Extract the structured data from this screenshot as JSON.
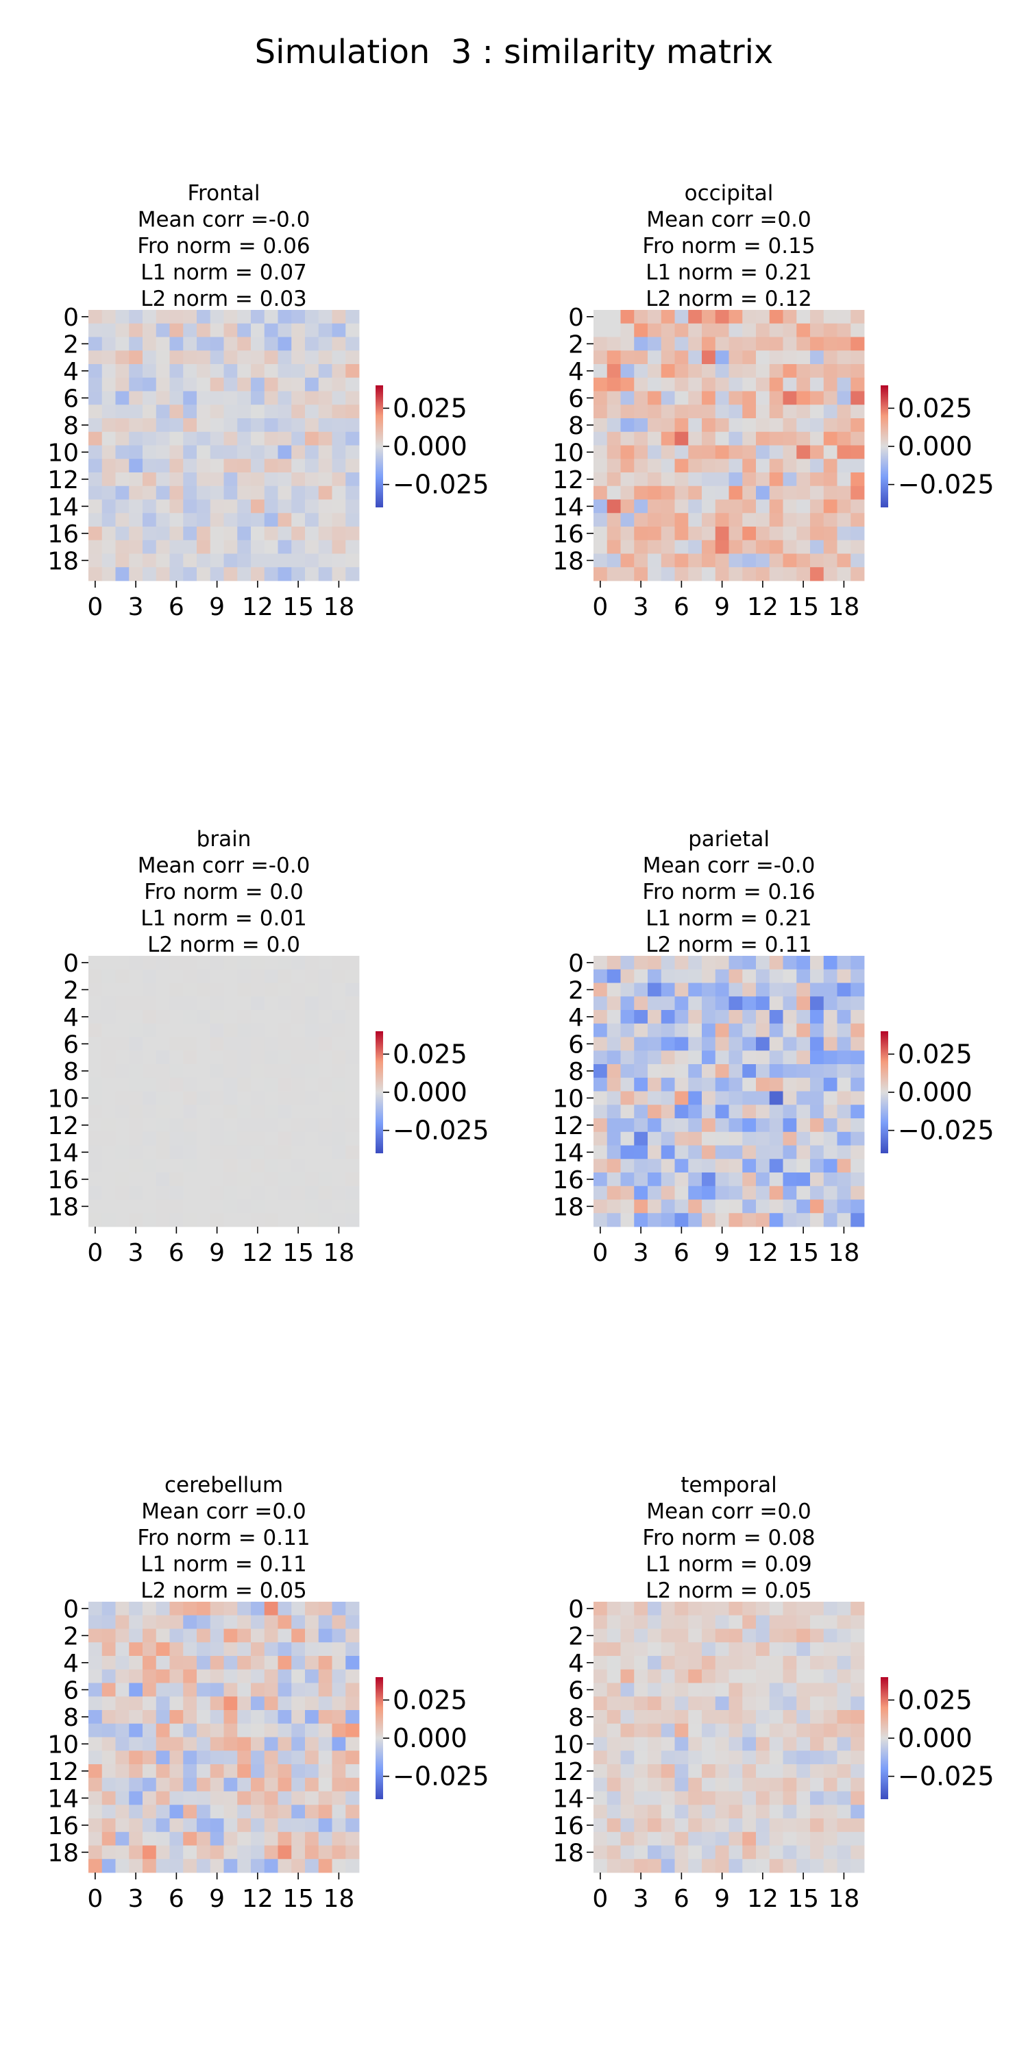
{
  "figure": {
    "title": "Simulation  3 : similarity matrix"
  },
  "chart_data": [
    {
      "type": "heatmap",
      "region": "Frontal",
      "title_lines": [
        "Frontal",
        "Mean corr =-0.0",
        "Fro norm = 0.06",
        "L1 norm = 0.07",
        "L2 norm = 0.03"
      ],
      "matrix_size": 20,
      "xticks": [
        "0",
        "3",
        "6",
        "9",
        "12",
        "15",
        "18"
      ],
      "yticks": [
        "0",
        "2",
        "4",
        "6",
        "8",
        "10",
        "12",
        "14",
        "16",
        "18"
      ],
      "colorbar_ticks": [
        "0.025",
        "0.000",
        "−0.025"
      ],
      "vmin": -0.04,
      "vmax": 0.04,
      "colormap": "coolwarm",
      "mean": -0.001,
      "spread": 0.006,
      "zero_first_row": false
    },
    {
      "type": "heatmap",
      "region": "occipital",
      "title_lines": [
        "occipital",
        "Mean corr =0.0",
        "Fro norm = 0.15",
        "L1 norm = 0.21",
        "L2 norm = 0.12"
      ],
      "matrix_size": 20,
      "xticks": [
        "0",
        "3",
        "6",
        "9",
        "12",
        "15",
        "18"
      ],
      "yticks": [
        "0",
        "2",
        "4",
        "6",
        "8",
        "10",
        "12",
        "14",
        "16",
        "18"
      ],
      "colorbar_ticks": [
        "0.025",
        "0.000",
        "−0.025"
      ],
      "vmin": -0.04,
      "vmax": 0.04,
      "colormap": "coolwarm",
      "mean": 0.007,
      "spread": 0.01,
      "zero_first_row": true
    },
    {
      "type": "heatmap",
      "region": "brain",
      "title_lines": [
        "brain",
        "Mean corr =-0.0",
        "Fro norm = 0.0",
        "L1 norm = 0.01",
        "L2 norm = 0.0"
      ],
      "matrix_size": 20,
      "xticks": [
        "0",
        "3",
        "6",
        "9",
        "12",
        "15",
        "18"
      ],
      "yticks": [
        "0",
        "2",
        "4",
        "6",
        "8",
        "10",
        "12",
        "14",
        "16",
        "18"
      ],
      "colorbar_ticks": [
        "0.025",
        "0.000",
        "−0.025"
      ],
      "vmin": -0.04,
      "vmax": 0.04,
      "colormap": "coolwarm",
      "mean": 0.0,
      "spread": 0.0003,
      "zero_first_row": false
    },
    {
      "type": "heatmap",
      "region": "parietal",
      "title_lines": [
        "parietal",
        "Mean corr =-0.0",
        "Fro norm = 0.16",
        "L1 norm = 0.21",
        "L2 norm = 0.11"
      ],
      "matrix_size": 20,
      "xticks": [
        "0",
        "3",
        "6",
        "9",
        "12",
        "15",
        "18"
      ],
      "yticks": [
        "0",
        "2",
        "4",
        "6",
        "8",
        "10",
        "12",
        "14",
        "16",
        "18"
      ],
      "colorbar_ticks": [
        "0.025",
        "0.000",
        "−0.025"
      ],
      "vmin": -0.04,
      "vmax": 0.04,
      "colormap": "coolwarm",
      "mean": -0.006,
      "spread": 0.012,
      "zero_first_row": false
    },
    {
      "type": "heatmap",
      "region": "cerebellum",
      "title_lines": [
        "cerebellum",
        "Mean corr =0.0",
        "Fro norm = 0.11",
        "L1 norm = 0.11",
        "L2 norm = 0.05"
      ],
      "matrix_size": 20,
      "xticks": [
        "0",
        "3",
        "6",
        "9",
        "12",
        "15",
        "18"
      ],
      "yticks": [
        "0",
        "2",
        "4",
        "6",
        "8",
        "10",
        "12",
        "14",
        "16",
        "18"
      ],
      "colorbar_ticks": [
        "0.025",
        "0.000",
        "−0.025"
      ],
      "vmin": -0.04,
      "vmax": 0.04,
      "colormap": "coolwarm",
      "mean": 0.002,
      "spread": 0.01,
      "zero_first_row": false
    },
    {
      "type": "heatmap",
      "region": "temporal",
      "title_lines": [
        "temporal",
        "Mean corr =0.0",
        "Fro norm = 0.08",
        "L1 norm = 0.09",
        "L2 norm = 0.05"
      ],
      "matrix_size": 20,
      "xticks": [
        "0",
        "3",
        "6",
        "9",
        "12",
        "15",
        "18"
      ],
      "yticks": [
        "0",
        "2",
        "4",
        "6",
        "8",
        "10",
        "12",
        "14",
        "16",
        "18"
      ],
      "colorbar_ticks": [
        "0.025",
        "0.000",
        "−0.025"
      ],
      "vmin": -0.04,
      "vmax": 0.04,
      "colormap": "coolwarm",
      "mean": 0.002,
      "spread": 0.006,
      "zero_first_row": false
    }
  ]
}
